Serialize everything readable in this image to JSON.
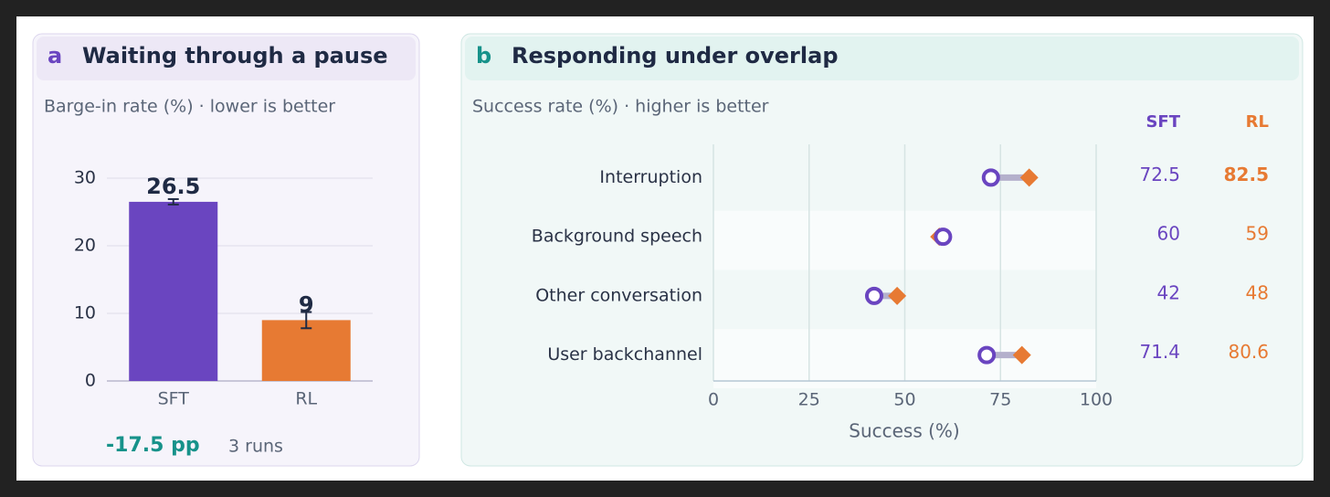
{
  "chart_data": [
    {
      "type": "bar",
      "panel_label": "a",
      "title": "Waiting through a pause",
      "subtitle": "Barge-in rate (%) · lower is better",
      "categories": [
        "SFT",
        "RL"
      ],
      "values": [
        26.5,
        9
      ],
      "errors": [
        0.4,
        1.2
      ],
      "colors": [
        "#6a45c0",
        "#e77a33"
      ],
      "ylim": [
        0,
        30
      ],
      "yticks": [
        0,
        10,
        20,
        30
      ],
      "grid": true,
      "annotation": "-17.5 pp",
      "note": "3 runs"
    },
    {
      "type": "dumbbell",
      "panel_label": "b",
      "title": "Responding under overlap",
      "subtitle": "Success rate (%) · higher is better",
      "categories": [
        "Interruption",
        "Background speech",
        "Other conversation",
        "User backchannel"
      ],
      "series": [
        {
          "name": "SFT",
          "color": "#6a45c0",
          "values": [
            72.5,
            60,
            42,
            71.4
          ]
        },
        {
          "name": "RL",
          "color": "#e77a33",
          "values": [
            82.5,
            59,
            48,
            80.6
          ],
          "bold": [
            true,
            false,
            false,
            false
          ]
        }
      ],
      "xlim": [
        0,
        100
      ],
      "xticks": [
        0,
        25,
        50,
        75,
        100
      ],
      "xlabel": "Success (%)",
      "grid": true
    }
  ]
}
